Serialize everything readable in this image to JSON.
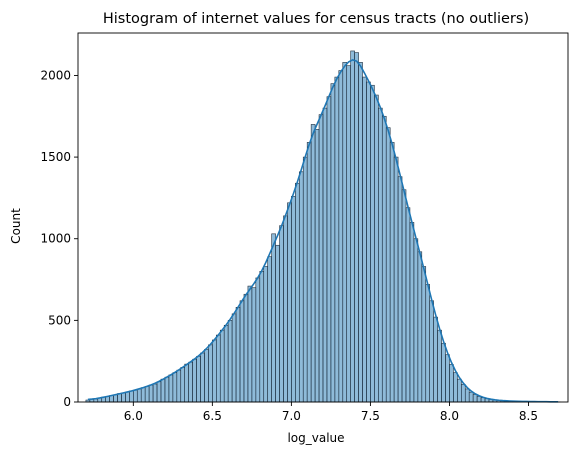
{
  "chart_data": {
    "type": "bar",
    "title": "Histogram of internet values for census tracts (no outliers)",
    "xlabel": "log_value",
    "ylabel": "Count",
    "xlim": [
      5.65,
      8.75
    ],
    "ylim": [
      0,
      2260
    ],
    "x_ticks": [
      "6.0",
      "6.5",
      "7.0",
      "7.5",
      "8.0",
      "8.5"
    ],
    "y_ticks": [
      "0",
      "500",
      "1000",
      "1500",
      "2000"
    ],
    "bin_start": 5.7,
    "bin_width": 0.025,
    "values": [
      12,
      16,
      18,
      24,
      30,
      34,
      40,
      44,
      52,
      56,
      60,
      68,
      72,
      80,
      88,
      96,
      104,
      110,
      124,
      140,
      152,
      166,
      180,
      195,
      212,
      232,
      244,
      262,
      280,
      300,
      322,
      350,
      380,
      410,
      440,
      470,
      500,
      540,
      580,
      620,
      660,
      710,
      700,
      760,
      800,
      830,
      890,
      1030,
      960,
      1080,
      1140,
      1220,
      1260,
      1340,
      1410,
      1500,
      1590,
      1700,
      1670,
      1760,
      1800,
      1870,
      1950,
      1990,
      2030,
      2080,
      2060,
      2150,
      2140,
      2080,
      1990,
      1960,
      1940,
      1880,
      1800,
      1750,
      1680,
      1590,
      1500,
      1380,
      1300,
      1190,
      1100,
      1000,
      920,
      830,
      720,
      620,
      520,
      440,
      360,
      290,
      230,
      180,
      140,
      108,
      80,
      60,
      46,
      34,
      26,
      20,
      16,
      12,
      10,
      8,
      7,
      6,
      5,
      4,
      4,
      3,
      3,
      2,
      2,
      2,
      2,
      1,
      1,
      1
    ],
    "bar_color": "#1f77b4",
    "bar_fill_opacity": 0.5,
    "kde_color": "#1f77b4",
    "grid": false
  }
}
